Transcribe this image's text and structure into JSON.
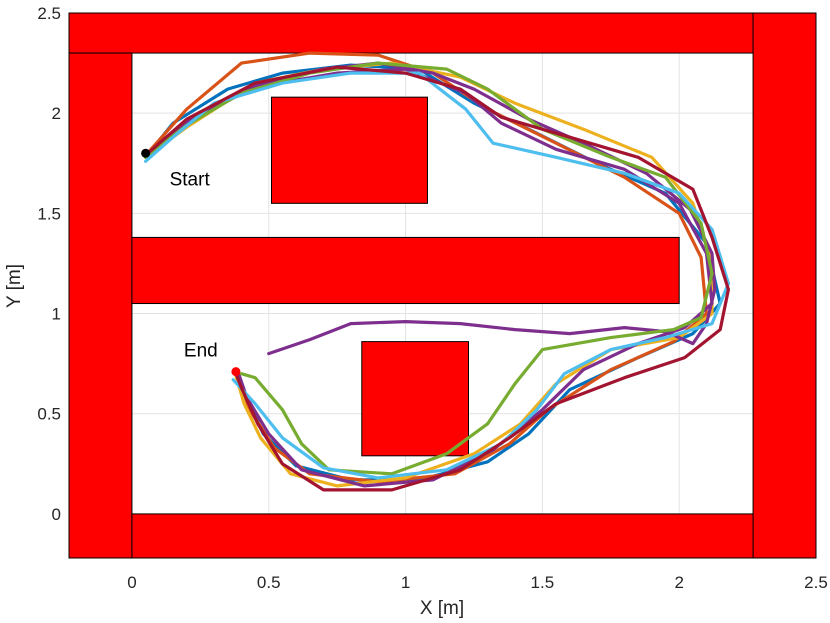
{
  "chart_data": {
    "type": "line",
    "xlabel": "X [m]",
    "ylabel": "Y [m]",
    "xlim": [
      -0.23,
      2.5
    ],
    "ylim": [
      -0.22,
      2.5
    ],
    "grid": true,
    "xticks": [
      "0",
      "0.5",
      "1",
      "1.5",
      "2",
      "2.5"
    ],
    "yticks": [
      "0",
      "0.5",
      "1",
      "1.5",
      "2",
      "2.5"
    ],
    "xtick_values": [
      0,
      0.5,
      1,
      1.5,
      2,
      2.5
    ],
    "ytick_values": [
      0,
      0.5,
      1,
      1.5,
      2,
      2.5
    ],
    "obstacle_color": "#ff0000",
    "obstacles": [
      {
        "x0": -0.23,
        "x1": 2.27,
        "y0": 2.3,
        "y1": 2.5
      },
      {
        "x0": 2.27,
        "x1": 2.5,
        "y0": -0.22,
        "y1": 2.5
      },
      {
        "x0": -0.23,
        "x1": 0.0,
        "y0": -0.22,
        "y1": 2.3
      },
      {
        "x0": 0.0,
        "x1": 2.27,
        "y0": -0.22,
        "y1": 0.0
      },
      {
        "x0": 0.0,
        "x1": 2.0,
        "y0": 1.05,
        "y1": 1.38
      },
      {
        "x0": 0.51,
        "x1": 1.08,
        "y0": 1.55,
        "y1": 2.08
      },
      {
        "x0": 0.84,
        "x1": 1.23,
        "y0": 0.29,
        "y1": 0.86
      }
    ],
    "start": {
      "label": "Start",
      "x": 0.05,
      "y": 1.8,
      "color": "#000000"
    },
    "end": {
      "label": "End",
      "x": 0.38,
      "y": 0.71,
      "color": "#ff0000"
    },
    "series": [
      {
        "color": "#0072bd",
        "points": [
          [
            0.05,
            1.78
          ],
          [
            0.15,
            1.95
          ],
          [
            0.35,
            2.12
          ],
          [
            0.55,
            2.2
          ],
          [
            0.8,
            2.24
          ],
          [
            1.05,
            2.22
          ],
          [
            1.25,
            2.05
          ],
          [
            1.45,
            1.92
          ],
          [
            1.7,
            1.75
          ],
          [
            1.95,
            1.6
          ],
          [
            2.1,
            1.35
          ],
          [
            2.15,
            1.05
          ],
          [
            2.05,
            0.9
          ],
          [
            1.85,
            0.78
          ],
          [
            1.6,
            0.62
          ],
          [
            1.45,
            0.4
          ],
          [
            1.3,
            0.26
          ],
          [
            1.05,
            0.17
          ],
          [
            0.8,
            0.17
          ],
          [
            0.6,
            0.24
          ],
          [
            0.48,
            0.4
          ],
          [
            0.42,
            0.58
          ],
          [
            0.39,
            0.67
          ]
        ]
      },
      {
        "color": "#d95319",
        "points": [
          [
            0.05,
            1.79
          ],
          [
            0.2,
            2.02
          ],
          [
            0.4,
            2.25
          ],
          [
            0.65,
            2.3
          ],
          [
            0.9,
            2.29
          ],
          [
            1.1,
            2.2
          ],
          [
            1.3,
            2.02
          ],
          [
            1.55,
            1.85
          ],
          [
            1.8,
            1.68
          ],
          [
            2.0,
            1.5
          ],
          [
            2.08,
            1.28
          ],
          [
            2.1,
            1.0
          ],
          [
            1.98,
            0.86
          ],
          [
            1.75,
            0.72
          ],
          [
            1.52,
            0.52
          ],
          [
            1.38,
            0.35
          ],
          [
            1.18,
            0.2
          ],
          [
            0.9,
            0.16
          ],
          [
            0.65,
            0.2
          ],
          [
            0.52,
            0.33
          ],
          [
            0.43,
            0.52
          ],
          [
            0.39,
            0.68
          ]
        ]
      },
      {
        "color": "#edb120",
        "points": [
          [
            0.05,
            1.78
          ],
          [
            0.2,
            1.93
          ],
          [
            0.45,
            2.15
          ],
          [
            0.7,
            2.22
          ],
          [
            0.95,
            2.25
          ],
          [
            1.2,
            2.18
          ],
          [
            1.4,
            2.05
          ],
          [
            1.65,
            1.92
          ],
          [
            1.9,
            1.78
          ],
          [
            2.05,
            1.55
          ],
          [
            2.12,
            1.25
          ],
          [
            2.12,
            1.0
          ],
          [
            2.0,
            0.88
          ],
          [
            1.75,
            0.82
          ],
          [
            1.55,
            0.65
          ],
          [
            1.42,
            0.45
          ],
          [
            1.25,
            0.3
          ],
          [
            1.0,
            0.18
          ],
          [
            0.75,
            0.14
          ],
          [
            0.58,
            0.2
          ],
          [
            0.47,
            0.38
          ],
          [
            0.41,
            0.55
          ],
          [
            0.38,
            0.69
          ]
        ]
      },
      {
        "color": "#7e2f8e",
        "points": [
          [
            0.05,
            1.79
          ],
          [
            0.2,
            1.96
          ],
          [
            0.45,
            2.13
          ],
          [
            0.75,
            2.2
          ],
          [
            1.0,
            2.22
          ],
          [
            1.22,
            2.1
          ],
          [
            1.35,
            1.95
          ],
          [
            1.55,
            1.82
          ],
          [
            1.8,
            1.72
          ],
          [
            2.0,
            1.55
          ],
          [
            2.1,
            1.3
          ],
          [
            2.12,
            1.05
          ],
          [
            2.02,
            0.93
          ],
          [
            1.85,
            0.85
          ],
          [
            1.65,
            0.72
          ],
          [
            1.5,
            0.52
          ],
          [
            1.32,
            0.32
          ],
          [
            1.1,
            0.17
          ],
          [
            0.85,
            0.14
          ],
          [
            0.62,
            0.22
          ],
          [
            0.5,
            0.4
          ],
          [
            0.42,
            0.58
          ],
          [
            0.39,
            0.7
          ]
        ]
      },
      {
        "color": "#7e2f8e",
        "points": [
          [
            0.5,
            0.8
          ],
          [
            0.65,
            0.87
          ],
          [
            0.8,
            0.95
          ],
          [
            1.0,
            0.96
          ],
          [
            1.2,
            0.95
          ],
          [
            1.4,
            0.92
          ],
          [
            1.6,
            0.9
          ],
          [
            1.8,
            0.93
          ],
          [
            1.95,
            0.91
          ],
          [
            2.05,
            0.85
          ],
          [
            2.1,
            0.95
          ],
          [
            2.13,
            1.12
          ],
          [
            2.12,
            1.3
          ],
          [
            2.04,
            1.52
          ],
          [
            1.88,
            1.7
          ],
          [
            1.65,
            1.85
          ],
          [
            1.45,
            1.97
          ],
          [
            1.25,
            2.12
          ],
          [
            1.1,
            2.2
          ],
          [
            0.9,
            2.25
          ],
          [
            0.7,
            2.22
          ],
          [
            0.45,
            2.14
          ],
          [
            0.25,
            2.0
          ],
          [
            0.05,
            1.79
          ]
        ]
      },
      {
        "color": "#77ac30",
        "points": [
          [
            0.05,
            1.78
          ],
          [
            0.2,
            1.94
          ],
          [
            0.4,
            2.1
          ],
          [
            0.65,
            2.2
          ],
          [
            0.9,
            2.25
          ],
          [
            1.15,
            2.22
          ],
          [
            1.3,
            2.12
          ],
          [
            1.5,
            1.92
          ],
          [
            1.75,
            1.78
          ],
          [
            1.95,
            1.68
          ],
          [
            2.08,
            1.45
          ],
          [
            2.12,
            1.2
          ],
          [
            2.08,
            0.98
          ],
          [
            1.98,
            0.92
          ],
          [
            1.75,
            0.88
          ],
          [
            1.5,
            0.82
          ],
          [
            1.4,
            0.65
          ],
          [
            1.3,
            0.45
          ],
          [
            1.15,
            0.3
          ],
          [
            0.95,
            0.2
          ],
          [
            0.72,
            0.22
          ],
          [
            0.62,
            0.35
          ],
          [
            0.55,
            0.52
          ],
          [
            0.45,
            0.68
          ],
          [
            0.4,
            0.7
          ]
        ]
      },
      {
        "color": "#4dbeee",
        "points": [
          [
            0.05,
            1.76
          ],
          [
            0.15,
            1.88
          ],
          [
            0.3,
            2.05
          ],
          [
            0.55,
            2.15
          ],
          [
            0.8,
            2.2
          ],
          [
            1.05,
            2.2
          ],
          [
            1.22,
            2.02
          ],
          [
            1.32,
            1.85
          ],
          [
            1.55,
            1.78
          ],
          [
            1.8,
            1.7
          ],
          [
            2.0,
            1.6
          ],
          [
            2.12,
            1.42
          ],
          [
            2.18,
            1.15
          ],
          [
            2.12,
            0.95
          ],
          [
            1.95,
            0.88
          ],
          [
            1.75,
            0.82
          ],
          [
            1.58,
            0.7
          ],
          [
            1.48,
            0.52
          ],
          [
            1.35,
            0.35
          ],
          [
            1.15,
            0.22
          ],
          [
            0.9,
            0.18
          ],
          [
            0.7,
            0.23
          ],
          [
            0.55,
            0.38
          ],
          [
            0.45,
            0.55
          ],
          [
            0.37,
            0.67
          ]
        ]
      },
      {
        "color": "#a2142f",
        "points": [
          [
            0.05,
            1.79
          ],
          [
            0.2,
            1.97
          ],
          [
            0.45,
            2.15
          ],
          [
            0.75,
            2.23
          ],
          [
            1.0,
            2.2
          ],
          [
            1.2,
            2.12
          ],
          [
            1.35,
            1.98
          ],
          [
            1.6,
            1.88
          ],
          [
            1.85,
            1.78
          ],
          [
            2.05,
            1.62
          ],
          [
            2.12,
            1.38
          ],
          [
            2.18,
            1.12
          ],
          [
            2.15,
            0.92
          ],
          [
            2.02,
            0.78
          ],
          [
            1.8,
            0.68
          ],
          [
            1.55,
            0.55
          ],
          [
            1.38,
            0.38
          ],
          [
            1.2,
            0.22
          ],
          [
            0.95,
            0.12
          ],
          [
            0.7,
            0.12
          ],
          [
            0.55,
            0.25
          ],
          [
            0.46,
            0.45
          ],
          [
            0.4,
            0.63
          ],
          [
            0.38,
            0.7
          ]
        ]
      }
    ]
  }
}
